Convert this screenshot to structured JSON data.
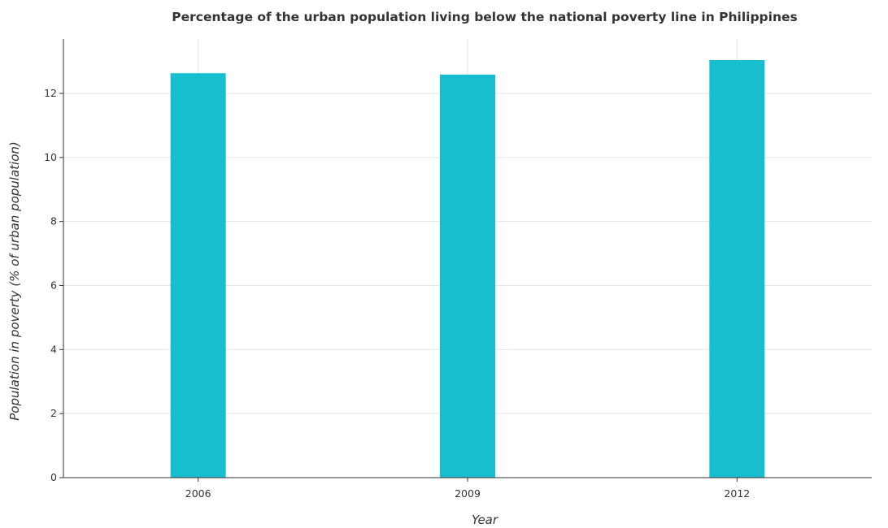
{
  "chart_data": {
    "type": "bar",
    "title": "Percentage of the urban population living below the national poverty line in Philippines",
    "xlabel": "Year",
    "ylabel": "Population in poverty (% of urban population)",
    "categories": [
      "2006",
      "2009",
      "2012"
    ],
    "values": [
      12.63,
      12.59,
      13.04
    ],
    "ylim": [
      0,
      13.7
    ],
    "yticks": [
      0,
      2,
      4,
      6,
      8,
      10,
      12
    ],
    "ytick_labels": [
      "0",
      "2",
      "4",
      "6",
      "8",
      "10",
      "12"
    ],
    "grid": true,
    "bar_color": "#17becf"
  }
}
